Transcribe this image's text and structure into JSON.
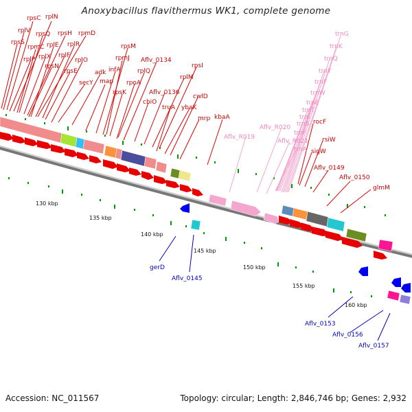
{
  "title": "Anoxybacillus flavithermus WK1, complete genome",
  "footer": {
    "accession": "Accession: NC_011567",
    "summary": "Topology: circular; Length: 2,846,746 bp; Genes: 2,932"
  },
  "colors": {
    "forward_label": "#cc0000",
    "rna_label": "#ee88bb",
    "reverse_label": "#0000bb",
    "backbone": "#999999",
    "ticks": "#009900"
  },
  "scale_ticks": [
    "130 kbp",
    "135 kbp",
    "140 kbp",
    "145 kbp",
    "150 kbp",
    "155 kbp",
    "160 kbp"
  ],
  "labels": {
    "forward": [
      "rpsC",
      "rplN",
      "rplV",
      "rpsQ",
      "rpsH",
      "rpmD",
      "rpsS",
      "rpmC",
      "rplE",
      "rplR",
      "rplP",
      "rplX",
      "rplF",
      "rpsN",
      "rplO",
      "rpsE",
      "adk",
      "secY",
      "map",
      "infA",
      "rpsM",
      "rpmJ",
      "Aflv_0134",
      "rplQ",
      "rpsK",
      "rpoA",
      "rpsI",
      "rplM",
      "Aflv_0136",
      "cbiO",
      "cwlD",
      "truA",
      "ybaK",
      "mrp",
      "kbaA",
      "rocF",
      "rsiW",
      "sigW",
      "Aflv_0149",
      "Aflv_0150",
      "glmM"
    ],
    "rna": [
      "trnG",
      "trnK",
      "trnQ",
      "trnY",
      "trnF",
      "trnW",
      "trnE",
      "trnT",
      "trnI",
      "trnS",
      "trnF",
      "trnA",
      "Aflv_R019",
      "Aflv_R020",
      "Aflv_R021"
    ],
    "reverse": [
      "gerD",
      "Aflv_0145",
      "Aflv_0153",
      "Aflv_0156",
      "Aflv_0157"
    ]
  }
}
